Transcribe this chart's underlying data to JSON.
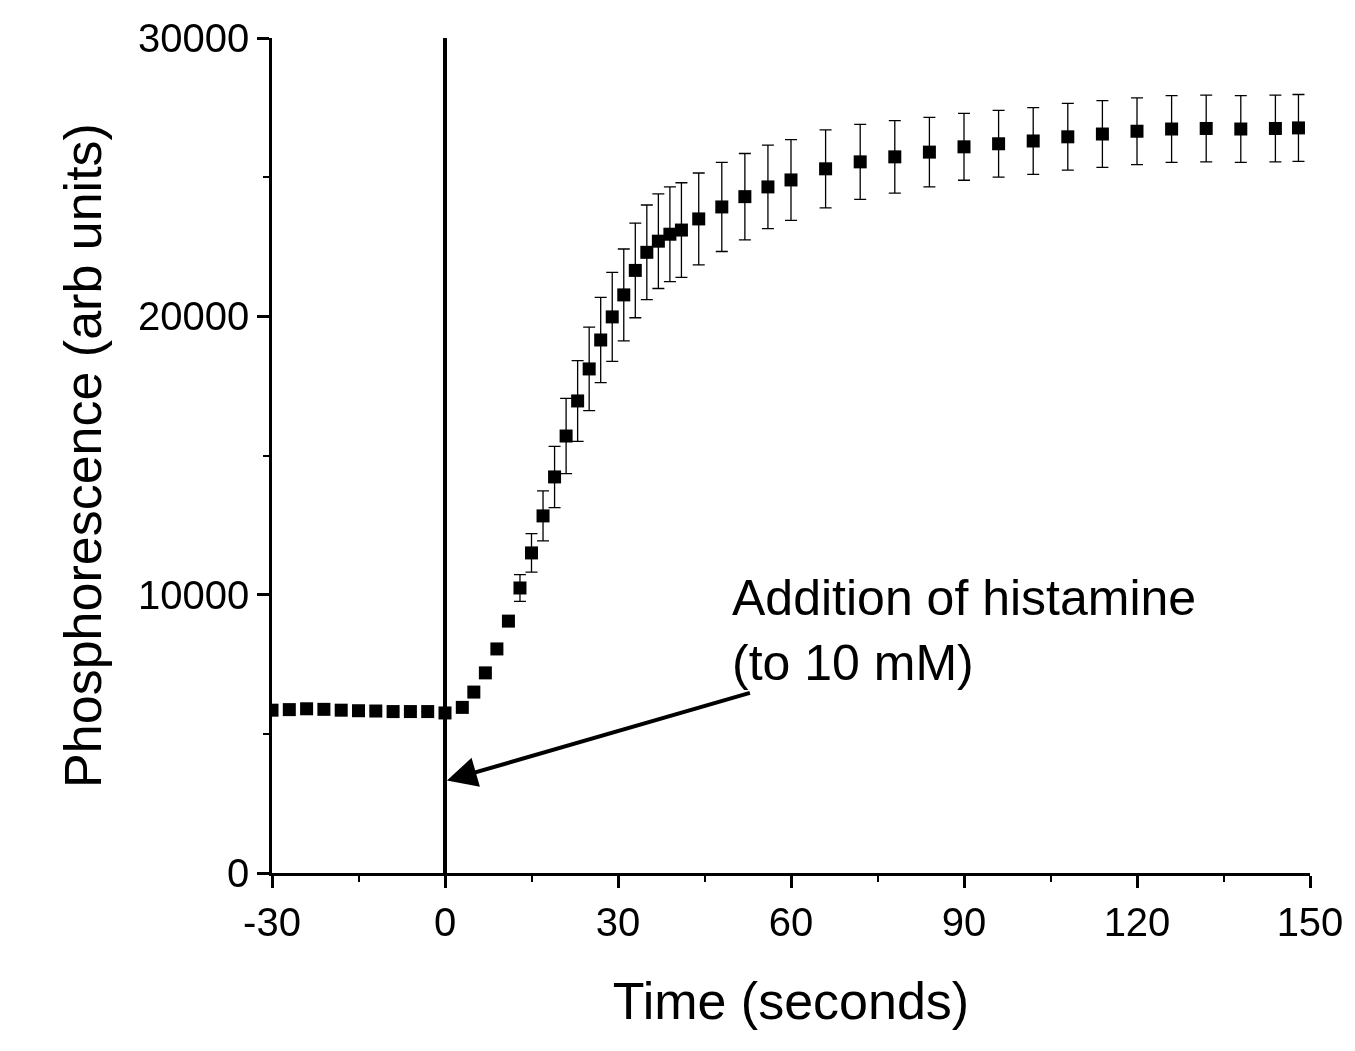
{
  "chart_data": {
    "type": "scatter",
    "xlabel": "Time (seconds)",
    "ylabel": "Phosphorescence (arb units)",
    "xlim": [
      -30,
      150
    ],
    "xticks": [
      -30,
      0,
      30,
      60,
      90,
      120,
      150
    ],
    "ylim": [
      0,
      30000
    ],
    "yticks": [
      0,
      10000,
      20000,
      30000
    ],
    "x": [
      -30,
      -27,
      -24,
      -21,
      -18,
      -15,
      -12,
      -9,
      -6,
      -3,
      0,
      3,
      5,
      7,
      9,
      11,
      13,
      15,
      17,
      19,
      21,
      23,
      25,
      27,
      29,
      31,
      33,
      35,
      37,
      39,
      41,
      44,
      48,
      52,
      56,
      60,
      66,
      72,
      78,
      84,
      90,
      96,
      102,
      108,
      114,
      120,
      126,
      132,
      138,
      144,
      148
    ],
    "series": [
      {
        "color": "#000000",
        "values": [
          5850,
          5870,
          5900,
          5880,
          5850,
          5830,
          5820,
          5800,
          5800,
          5800,
          5750,
          5950,
          6500,
          7190,
          8050,
          9050,
          10240,
          11500,
          12830,
          14230,
          15700,
          16960,
          18110,
          19150,
          19980,
          20770,
          21650,
          22300,
          22700,
          22950,
          23100,
          23500,
          23930,
          24300,
          24650,
          24900,
          25300,
          25550,
          25730,
          25900,
          26090,
          26200,
          26300,
          26450,
          26550,
          26650,
          26730,
          26750,
          26730,
          26750,
          26770
        ],
        "errors": [
          null,
          null,
          null,
          null,
          null,
          null,
          null,
          null,
          null,
          null,
          null,
          null,
          null,
          null,
          null,
          null,
          480,
          690,
          900,
          1100,
          1350,
          1450,
          1500,
          1530,
          1600,
          1650,
          1700,
          1700,
          1700,
          1700,
          1700,
          1650,
          1600,
          1550,
          1500,
          1450,
          1400,
          1350,
          1300,
          1250,
          1200,
          1200,
          1200,
          1200,
          1200,
          1200,
          1200,
          1200,
          1200,
          1200,
          1200
        ]
      }
    ],
    "marker": "square",
    "ref_lines": [
      {
        "axis": "x",
        "value": 0,
        "color": "#000000",
        "line_style": "solid"
      }
    ],
    "annotations": [
      {
        "text": "Addition of histamine\n(to 10 mM)",
        "x": 0,
        "y": 3300
      }
    ]
  }
}
